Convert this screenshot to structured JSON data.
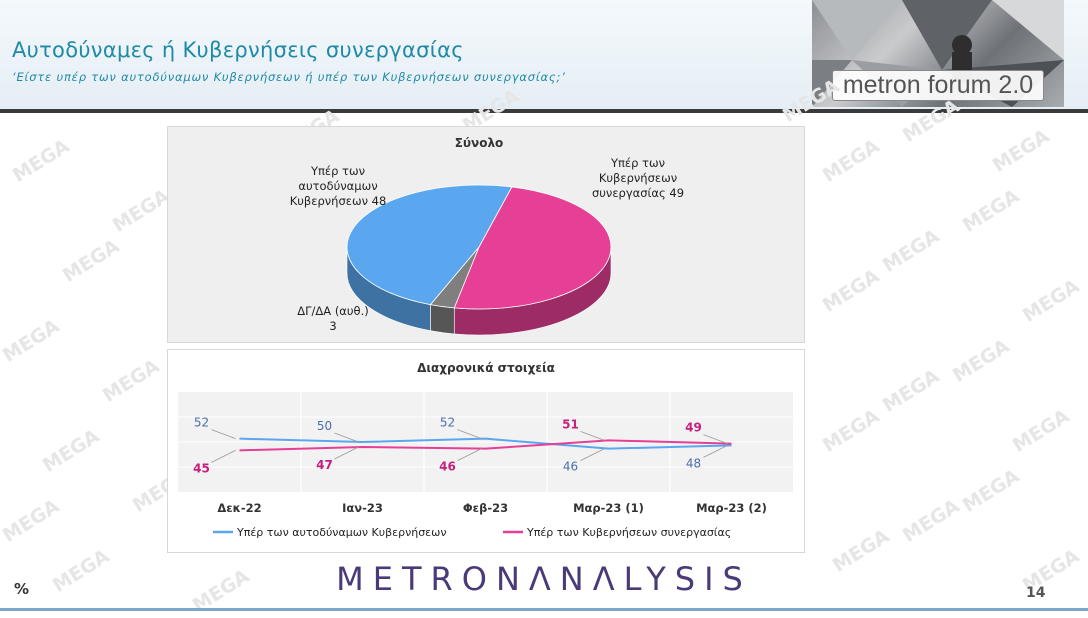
{
  "header": {
    "title": "Αυτοδύναμες ή Κυβερνήσεις συνεργασίας",
    "subtitle": "‘Είστε υπέρ των αυτοδύναμων Κυβερνήσεων ή υπέρ των Κυβερνήσεων συνεργασίας;’",
    "brand": "metron forum 2.0"
  },
  "watermark_text": "MEGA",
  "footer": {
    "logo": "METRONΛNΛLYSIS",
    "unit": "%",
    "page": "14"
  },
  "colors": {
    "blue": "#5aa7ef",
    "pink": "#e63f96",
    "grey": "#7f7f7f",
    "title": "#1e8aa6",
    "blue_text": "#4a6fb0",
    "pink_text": "#c4207f"
  },
  "chart_data": [
    {
      "type": "pie",
      "title": "Σύνολο",
      "slices": [
        {
          "label_lines": [
            "Υπέρ των",
            "Κυβερνήσεων",
            "συνεργασίας 49"
          ],
          "value": 49,
          "color": "#e63f96"
        },
        {
          "label_lines": [
            "ΔΓ/ΔΑ (αυθ.)",
            "3"
          ],
          "value": 3,
          "color": "#7f7f7f"
        },
        {
          "label_lines": [
            "Υπέρ των",
            "αυτοδύναμων",
            "Κυβερνήσεων 48"
          ],
          "value": 48,
          "color": "#5aa7ef"
        }
      ]
    },
    {
      "type": "line",
      "title": "Διαχρονικά στοιχεία",
      "categories": [
        "Δεκ-22",
        "Ιαν-23",
        "Φεβ-23",
        "Μαρ-23 (1)",
        "Μαρ-23 (2)"
      ],
      "series": [
        {
          "name": "Υπέρ των αυτοδύναμων Κυβερνήσεων",
          "values": [
            52,
            50,
            52,
            46,
            48
          ],
          "color": "#5aa7ef"
        },
        {
          "name": "Υπέρ των Κυβερνήσεων συνεργασίας",
          "values": [
            45,
            47,
            46,
            51,
            49
          ],
          "color": "#e63f96"
        }
      ],
      "legend": "bottom",
      "grid": true
    }
  ]
}
